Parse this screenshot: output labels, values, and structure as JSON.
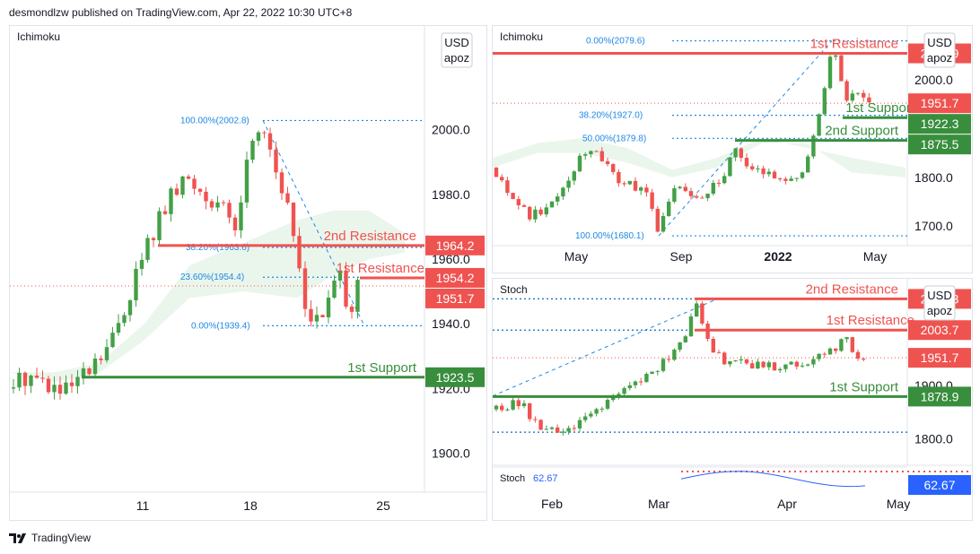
{
  "header": {
    "publisher": "desmondlzw published on TradingView.com, Apr 22, 2022 10:30 UTC+8"
  },
  "footer": {
    "brand": "TradingView"
  },
  "colors": {
    "red": "#ef5350",
    "green": "#43a047",
    "blue": "#2962ff",
    "fib": "#1e88e5",
    "dark_green": "#388e3c",
    "cloud_green": "#e8f5e9",
    "cloud_red": "#fde7e7"
  },
  "chart_data": [
    {
      "type": "candlestick",
      "indicator": "Ichimoku",
      "currency": "USD",
      "unit": "apoz",
      "x_ticks": [
        "11",
        "18",
        "25"
      ],
      "y_ticks": [
        2000.0,
        1980.0,
        1960.0,
        1940.0,
        1920.0,
        1900.0
      ],
      "y_tick_labels": [
        "2000.0",
        "1980.0",
        "1960.0",
        "1940.0",
        "1920.0",
        "1900.0"
      ],
      "ylim": [
        1888,
        2032
      ],
      "price_tags": [
        {
          "label": "1964.2",
          "value": 1964.2,
          "color": "red"
        },
        {
          "label": "1954.2",
          "value": 1954.2,
          "color": "red"
        },
        {
          "label": "1951.7",
          "value": 1951.7,
          "color": "red"
        },
        {
          "label": "1923.5",
          "value": 1923.5,
          "color": "green"
        }
      ],
      "levels": [
        {
          "name": "2nd Resistance",
          "value": 1964.2,
          "color": "red"
        },
        {
          "name": "1st Resistance",
          "value": 1954.2,
          "color": "red"
        },
        {
          "name": "1st Support",
          "value": 1923.5,
          "color": "green"
        }
      ],
      "fib": [
        {
          "label": "100.00%(2002.8)",
          "value": 2002.8
        },
        {
          "label": "38.20%(1963.6)",
          "value": 1963.6
        },
        {
          "label": "23.60%(1954.4)",
          "value": 1954.4
        },
        {
          "label": "0.00%(1939.4)",
          "value": 1939.4
        }
      ]
    },
    {
      "type": "candlestick",
      "indicator": "Ichimoku",
      "currency": "USD",
      "unit": "apoz",
      "x_ticks": [
        "May",
        "Sep",
        "2022",
        "May"
      ],
      "y_ticks": [
        2000.0,
        1800.0,
        1700.0
      ],
      "y_tick_labels": [
        "2000.0",
        "1800.0",
        "1700.0"
      ],
      "ylim": [
        1660,
        2110
      ],
      "price_tags": [
        {
          "label": "2053.9",
          "value": 2053.9,
          "color": "red"
        },
        {
          "label": "1951.7",
          "value": 1951.7,
          "color": "red"
        },
        {
          "label": "1922.3",
          "value": 1922.3,
          "color": "green"
        },
        {
          "label": "1875.5",
          "value": 1875.5,
          "color": "green"
        }
      ],
      "levels": [
        {
          "name": "1st Resistance",
          "value": 2053.9,
          "color": "red"
        },
        {
          "name": "1st Support",
          "value": 1922.3,
          "color": "green"
        },
        {
          "name": "2nd Support",
          "value": 1875.5,
          "color": "green"
        }
      ],
      "fib": [
        {
          "label": "0.00%(2079.6)",
          "value": 2079.6
        },
        {
          "label": "38.20%(1927.0)",
          "value": 1927.0
        },
        {
          "label": "50.00%(1879.8)",
          "value": 1879.8
        },
        {
          "label": "100.00%(1680.1)",
          "value": 1680.1
        }
      ]
    },
    {
      "type": "candlestick",
      "indicator": "Stoch",
      "currency": "USD",
      "unit": "apoz",
      "x_ticks": [
        "Feb",
        "Mar",
        "Apr",
        "May"
      ],
      "y_ticks": [
        1900.0,
        1800.0
      ],
      "y_tick_labels": [
        "1900.0",
        "1800.0"
      ],
      "ylim": [
        1750,
        2100
      ],
      "price_tags": [
        {
          "label": "2062.3",
          "value": 2062.3,
          "color": "red"
        },
        {
          "label": "2003.7",
          "value": 2003.7,
          "color": "red"
        },
        {
          "label": "1951.7",
          "value": 1951.7,
          "color": "red"
        },
        {
          "label": "1878.9",
          "value": 1878.9,
          "color": "green"
        }
      ],
      "levels": [
        {
          "name": "2nd Resistance",
          "value": 2062.3,
          "color": "red"
        },
        {
          "name": "1st Resistance",
          "value": 2003.7,
          "color": "red"
        },
        {
          "name": "1st Support",
          "value": 1878.9,
          "color": "green"
        }
      ],
      "stoch": {
        "label": "Stoch",
        "value_label": "62.67",
        "value": 62.67
      }
    }
  ]
}
